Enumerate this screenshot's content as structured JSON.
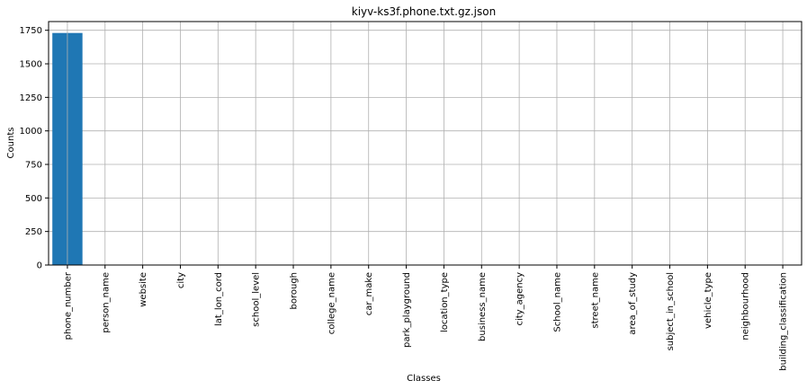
{
  "chart_data": {
    "type": "bar",
    "title": "kiyv-ks3f.phone.txt.gz.json",
    "xlabel": "Classes",
    "ylabel": "Counts",
    "categories": [
      "phone_number",
      "person_name",
      "website",
      "city",
      "lat_lon_cord",
      "school_level",
      "borough",
      "college_name",
      "car_make",
      "park_playground",
      "location_type",
      "business_name",
      "city_agency",
      "School_name",
      "street_name",
      "area_of_study",
      "subject_in_school",
      "vehicle_type",
      "neighbourhood",
      "building_classification"
    ],
    "values": [
      1730,
      0,
      0,
      0,
      0,
      0,
      0,
      0,
      0,
      0,
      0,
      0,
      0,
      0,
      0,
      0,
      0,
      0,
      0,
      0
    ],
    "yticks": [
      0,
      250,
      500,
      750,
      1000,
      1250,
      1500,
      1750
    ],
    "ylim": [
      0,
      1815
    ],
    "grid": true,
    "bar_color": "#1f77b4",
    "grid_color": "#b0b0b0"
  }
}
